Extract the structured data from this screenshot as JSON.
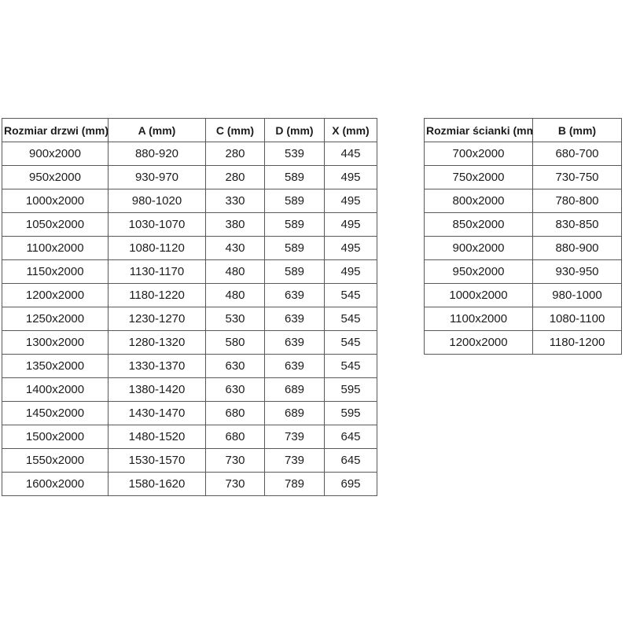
{
  "colors": {
    "background": "#ffffff",
    "border": "#595959",
    "text": "#1c1c1c"
  },
  "tables": {
    "doors": {
      "headers": [
        "Rozmiar drzwi (mm)",
        "A (mm)",
        "C (mm)",
        "D (mm)",
        "X (mm)"
      ],
      "rows": [
        [
          "900x2000",
          "880-920",
          "280",
          "539",
          "445"
        ],
        [
          "950x2000",
          "930-970",
          "280",
          "589",
          "495"
        ],
        [
          "1000x2000",
          "980-1020",
          "330",
          "589",
          "495"
        ],
        [
          "1050x2000",
          "1030-1070",
          "380",
          "589",
          "495"
        ],
        [
          "1100x2000",
          "1080-1120",
          "430",
          "589",
          "495"
        ],
        [
          "1150x2000",
          "1130-1170",
          "480",
          "589",
          "495"
        ],
        [
          "1200x2000",
          "1180-1220",
          "480",
          "639",
          "545"
        ],
        [
          "1250x2000",
          "1230-1270",
          "530",
          "639",
          "545"
        ],
        [
          "1300x2000",
          "1280-1320",
          "580",
          "639",
          "545"
        ],
        [
          "1350x2000",
          "1330-1370",
          "630",
          "639",
          "545"
        ],
        [
          "1400x2000",
          "1380-1420",
          "630",
          "689",
          "595"
        ],
        [
          "1450x2000",
          "1430-1470",
          "680",
          "689",
          "595"
        ],
        [
          "1500x2000",
          "1480-1520",
          "680",
          "739",
          "645"
        ],
        [
          "1550x2000",
          "1530-1570",
          "730",
          "739",
          "645"
        ],
        [
          "1600x2000",
          "1580-1620",
          "730",
          "789",
          "695"
        ]
      ]
    },
    "walls": {
      "headers": [
        "Rozmiar ścianki (mm)",
        "B (mm)"
      ],
      "rows": [
        [
          "700x2000",
          "680-700"
        ],
        [
          "750x2000",
          "730-750"
        ],
        [
          "800x2000",
          "780-800"
        ],
        [
          "850x2000",
          "830-850"
        ],
        [
          "900x2000",
          "880-900"
        ],
        [
          "950x2000",
          "930-950"
        ],
        [
          "1000x2000",
          "980-1000"
        ],
        [
          "1100x2000",
          "1080-1100"
        ],
        [
          "1200x2000",
          "1180-1200"
        ]
      ]
    }
  }
}
